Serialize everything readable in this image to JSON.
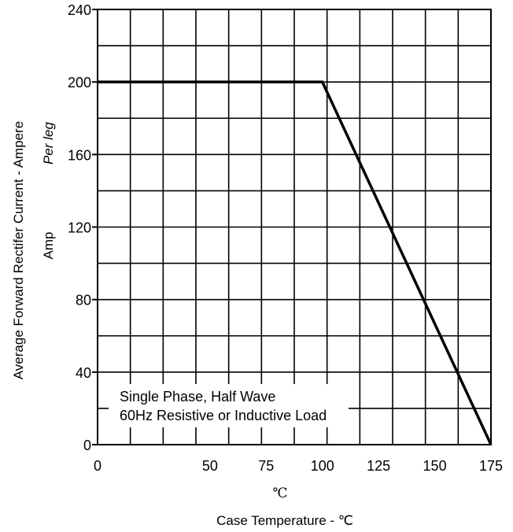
{
  "chart_data": {
    "type": "line",
    "ylabel_line1": "Average  Forward  Rectifer  Current -  Ampere",
    "ylabel_italic": "Per leg",
    "ylabel_line2": "Amp",
    "xunit": "℃",
    "xlabel": "Case Temperature -  ℃",
    "xlim": [
      0,
      175
    ],
    "ylim": [
      0,
      240
    ],
    "xticks": [
      0,
      25,
      50,
      75,
      100,
      125,
      150,
      175
    ],
    "xtick_labels": [
      "0",
      "50",
      "75",
      "100",
      "125",
      "150",
      "175"
    ],
    "xtick_label_values": [
      0,
      50,
      75,
      100,
      125,
      150,
      175
    ],
    "yticks": [
      0,
      40,
      80,
      120,
      160,
      200,
      240
    ],
    "ytick_labels": [
      "0",
      "40",
      "80",
      "120",
      "160",
      "200",
      "240"
    ],
    "grid": true,
    "series": [
      {
        "x": [
          0,
          100,
          175
        ],
        "y": [
          200,
          200,
          0
        ],
        "color": "#000000"
      }
    ],
    "annotation": {
      "line1": "Single Phase, Half Wave",
      "line2": "60Hz Resistive or Inductive Load"
    }
  }
}
